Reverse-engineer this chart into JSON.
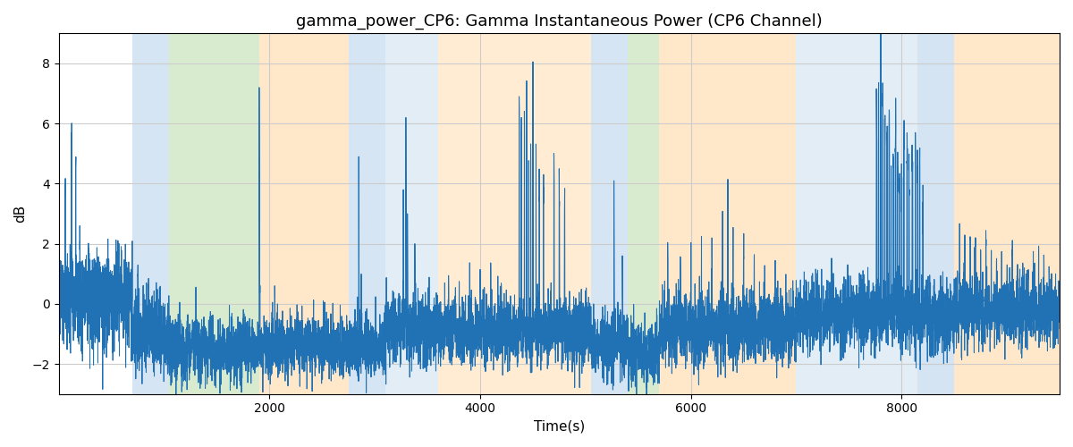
{
  "title": "gamma_power_CP6: Gamma Instantaneous Power (CP6 Channel)",
  "xlabel": "Time(s)",
  "ylabel": "dB",
  "xlim": [
    0,
    9500
  ],
  "ylim": [
    -3,
    9
  ],
  "yticks": [
    -2,
    0,
    2,
    4,
    6,
    8
  ],
  "xticks": [
    2000,
    4000,
    6000,
    8000
  ],
  "line_color": "#2171b5",
  "line_width": 0.75,
  "background_color": "#ffffff",
  "grid_color": "#cccccc",
  "title_fontsize": 13,
  "label_fontsize": 11,
  "bands": [
    {
      "xmin": 700,
      "xmax": 1050,
      "color": "#aecde8",
      "alpha": 0.5
    },
    {
      "xmin": 1050,
      "xmax": 1900,
      "color": "#b5d9a0",
      "alpha": 0.5
    },
    {
      "xmin": 1900,
      "xmax": 2750,
      "color": "#ffd59e",
      "alpha": 0.55
    },
    {
      "xmin": 2750,
      "xmax": 3100,
      "color": "#aecde8",
      "alpha": 0.5
    },
    {
      "xmin": 3100,
      "xmax": 3600,
      "color": "#aecde8",
      "alpha": 0.35
    },
    {
      "xmin": 3600,
      "xmax": 5050,
      "color": "#ffd59e",
      "alpha": 0.45
    },
    {
      "xmin": 5050,
      "xmax": 5400,
      "color": "#aecde8",
      "alpha": 0.5
    },
    {
      "xmin": 5400,
      "xmax": 5700,
      "color": "#b5d9a0",
      "alpha": 0.5
    },
    {
      "xmin": 5700,
      "xmax": 7000,
      "color": "#ffd59e",
      "alpha": 0.55
    },
    {
      "xmin": 7000,
      "xmax": 8500,
      "color": "#aecde8",
      "alpha": 0.35
    },
    {
      "xmin": 8150,
      "xmax": 8500,
      "color": "#aecde8",
      "alpha": 0.25
    },
    {
      "xmin": 8500,
      "xmax": 9500,
      "color": "#ffd59e",
      "alpha": 0.55
    }
  ],
  "seed": 7
}
